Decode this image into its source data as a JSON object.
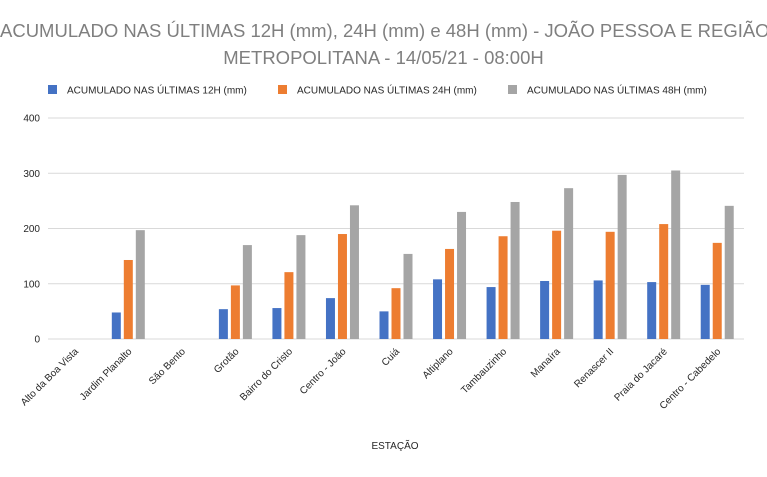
{
  "chart_data": {
    "type": "bar",
    "title_lines": [
      "ACUMULADO NAS ÚLTIMAS 12H (mm), 24H (mm) e 48H (mm) - JOÃO PESSOA E REGIÃO",
      "METROPOLITANA - 14/05/21 - 08:00H"
    ],
    "xlabel": "ESTAÇÃO",
    "ylabel": "",
    "ylim": [
      0,
      400
    ],
    "yticks": [
      0,
      100,
      200,
      300,
      400
    ],
    "grid": true,
    "legend_position": "top",
    "categories": [
      "Alto da Boa Vista",
      "Jardim Planalto",
      "São Bento",
      "Grotão",
      "Bairro do Cristo",
      "Centro - João",
      "Cuiá",
      "Altiplano",
      "Tambauzinho",
      "Manaíra",
      "Renascer II",
      "Praia do Jacaré",
      "Centro - Cabedelo"
    ],
    "series": [
      {
        "name": "ACUMULADO NAS ÚLTIMAS 12H (mm)",
        "color": "#4472c4",
        "values": [
          0,
          48,
          0,
          54,
          56,
          74,
          50,
          108,
          94,
          105,
          106,
          103,
          98
        ]
      },
      {
        "name": "ACUMULADO NAS ÚLTIMAS 24H (mm)",
        "color": "#ed7d31",
        "values": [
          0,
          143,
          0,
          97,
          121,
          190,
          92,
          163,
          186,
          196,
          194,
          208,
          174
        ]
      },
      {
        "name": "ACUMULADO NAS ÚLTIMAS 48H (mm)",
        "color": "#a5a5a5",
        "values": [
          0,
          197,
          0,
          170,
          188,
          242,
          154,
          230,
          248,
          273,
          297,
          305,
          241
        ]
      }
    ]
  }
}
